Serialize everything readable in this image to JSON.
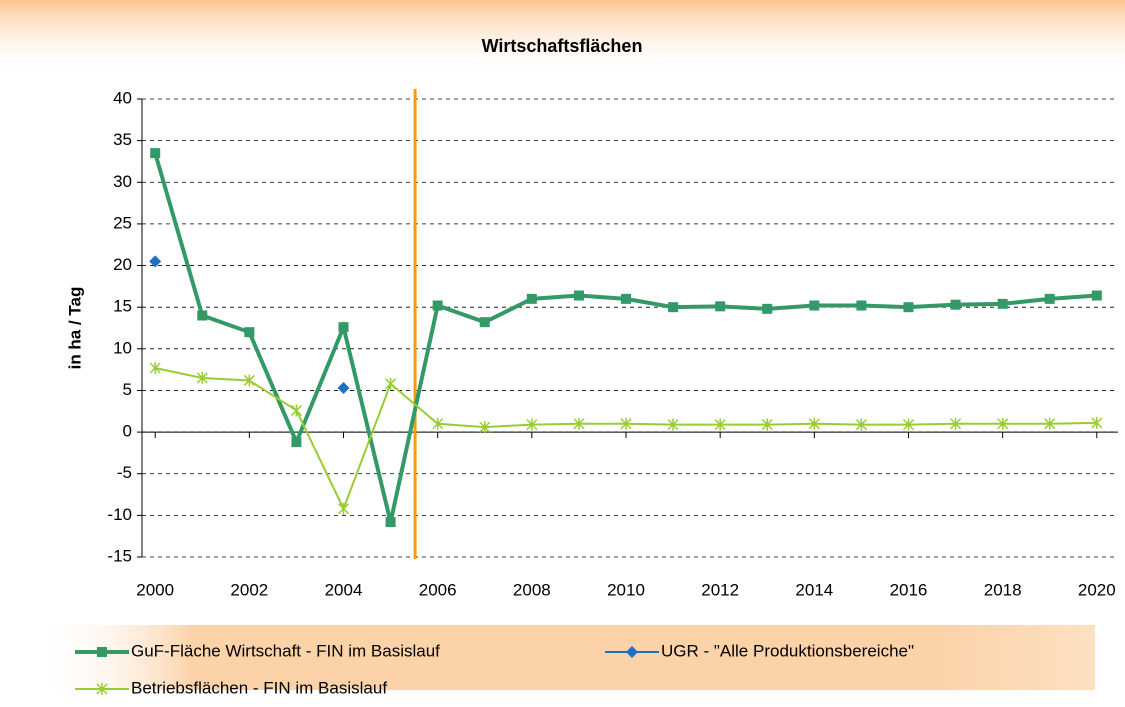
{
  "chart_data": {
    "type": "line",
    "title": "Wirtschaftsflächen",
    "ylabel": "in ha / Tag",
    "x": [
      2000,
      2001,
      2002,
      2003,
      2004,
      2005,
      2006,
      2007,
      2008,
      2009,
      2010,
      2011,
      2012,
      2013,
      2014,
      2015,
      2016,
      2017,
      2018,
      2019,
      2020
    ],
    "series": [
      {
        "name": "GuF-Fläche Wirtschaft - FIN im Basislauf",
        "color": "#339966",
        "marker": "square",
        "values": [
          33.5,
          14,
          12,
          -1.2,
          12.6,
          -10.8,
          15.2,
          13.2,
          16,
          16.4,
          16,
          15,
          15.1,
          14.8,
          15.2,
          15.2,
          15,
          15.3,
          15.4,
          16,
          16.4
        ]
      },
      {
        "name": "UGR - \"Alle Produktionsbereiche\"",
        "color": "#1f6fc4",
        "marker": "diamond",
        "values": [
          20.5,
          null,
          null,
          null,
          5.3,
          null,
          null,
          null,
          null,
          null,
          null,
          null,
          null,
          null,
          null,
          null,
          null,
          null,
          null,
          null,
          null
        ]
      },
      {
        "name": "Betriebsflächen - FIN im Basislauf",
        "color": "#99cc33",
        "marker": "star",
        "values": [
          7.7,
          6.5,
          6.2,
          2.6,
          -9.2,
          5.8,
          1.0,
          0.6,
          0.9,
          1.0,
          1.0,
          0.9,
          0.9,
          0.9,
          1.0,
          0.9,
          0.9,
          1.0,
          1.0,
          1.0,
          1.1
        ]
      }
    ],
    "xlim": [
      1999.72,
      2020.45
    ],
    "xticks": [
      2000,
      2002,
      2004,
      2006,
      2008,
      2010,
      2012,
      2014,
      2016,
      2018,
      2020
    ],
    "ylim": [
      -15,
      40
    ],
    "yticks": [
      -15,
      -10,
      -5,
      0,
      5,
      10,
      15,
      20,
      25,
      30,
      35,
      40
    ],
    "grid": true,
    "vertical_line": {
      "x": 2005.52,
      "color": "#f39c12"
    }
  }
}
